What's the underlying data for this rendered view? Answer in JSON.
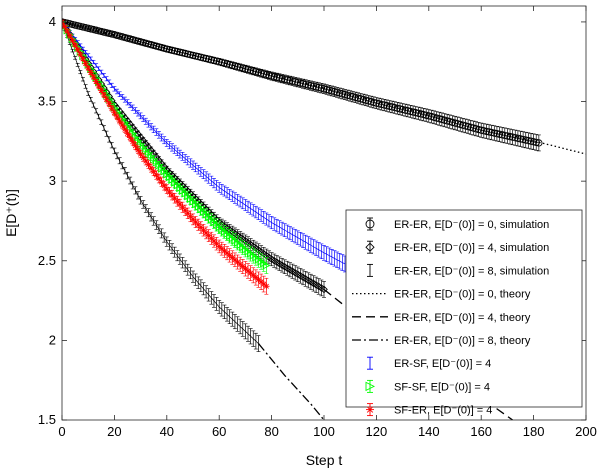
{
  "chart_data": {
    "type": "line",
    "xlabel": "Step t",
    "ylabel": "E[D⁺(t)]",
    "xlim": [
      0,
      200
    ],
    "ylim": [
      1.5,
      4.1
    ],
    "xticks": [
      "0",
      "20",
      "40",
      "60",
      "80",
      "100",
      "120",
      "140",
      "160",
      "180",
      "200"
    ],
    "yticks": [
      "1.5",
      "2",
      "2.5",
      "3",
      "3.5",
      "4"
    ],
    "grid": false,
    "legend_position": "bottom-right",
    "series": [
      {
        "name": "ER-ER, E[D⁻(0)] = 0, simulation",
        "kind": "errorbar",
        "marker": "circle",
        "color": "#000000",
        "x": [
          0,
          20,
          40,
          60,
          80,
          100,
          120,
          140,
          160,
          182
        ],
        "y": [
          4.0,
          3.92,
          3.83,
          3.75,
          3.66,
          3.58,
          3.49,
          3.41,
          3.32,
          3.24
        ]
      },
      {
        "name": "ER-ER, E[D⁻(0)] = 4, simulation",
        "kind": "errorbar",
        "marker": "diamond",
        "color": "#000000",
        "x": [
          0,
          20,
          40,
          60,
          80,
          100
        ],
        "y": [
          4.0,
          3.48,
          3.07,
          2.74,
          2.51,
          2.32
        ]
      },
      {
        "name": "ER-ER, E[D⁻(0)] = 8, simulation",
        "kind": "errorbar",
        "marker": "none",
        "color": "#000000",
        "x": [
          0,
          10,
          20,
          30,
          40,
          50,
          60,
          75
        ],
        "y": [
          4.0,
          3.55,
          3.19,
          2.88,
          2.62,
          2.4,
          2.21,
          1.98
        ]
      },
      {
        "name": "ER-ER, E[D⁻(0)] = 0, theory",
        "kind": "line",
        "dash": "dotted",
        "color": "#000000",
        "x": [
          0,
          200
        ],
        "y": [
          4.0,
          3.17
        ]
      },
      {
        "name": "ER-ER, E[D⁻(0)] = 4, theory",
        "kind": "line",
        "dash": "dashed",
        "color": "#000000",
        "x": [
          100,
          120,
          140,
          160,
          172
        ],
        "y": [
          2.32,
          2.06,
          1.84,
          1.64,
          1.5
        ]
      },
      {
        "name": "ER-ER, E[D⁻(0)] = 8, theory",
        "kind": "line",
        "dash": "dashdot",
        "color": "#000000",
        "x": [
          75,
          85,
          95,
          100
        ],
        "y": [
          1.98,
          1.78,
          1.6,
          1.5
        ]
      },
      {
        "name": "ER-SF,  E[D⁻(0)] = 4",
        "kind": "errorbar",
        "marker": "none",
        "color": "#0000ff",
        "x": [
          0,
          20,
          40,
          60,
          80,
          100,
          108
        ],
        "y": [
          4.0,
          3.58,
          3.24,
          2.96,
          2.74,
          2.55,
          2.48
        ]
      },
      {
        "name": "SF-SF, E[D⁻(0)] = 4",
        "kind": "errorbar",
        "marker": "triangle-right",
        "color": "#00ff00",
        "x": [
          0,
          10,
          20,
          30,
          40,
          50,
          60,
          70,
          78
        ],
        "y": [
          4.0,
          3.73,
          3.46,
          3.23,
          3.04,
          2.87,
          2.71,
          2.57,
          2.47
        ]
      },
      {
        "name": "SF-ER, E[D⁻(0)] = 4",
        "kind": "errorbar",
        "marker": "star",
        "color": "#ff0000",
        "x": [
          0,
          10,
          20,
          30,
          40,
          50,
          60,
          70,
          78
        ],
        "y": [
          4.0,
          3.71,
          3.43,
          3.17,
          2.95,
          2.76,
          2.59,
          2.45,
          2.34
        ]
      }
    ]
  }
}
